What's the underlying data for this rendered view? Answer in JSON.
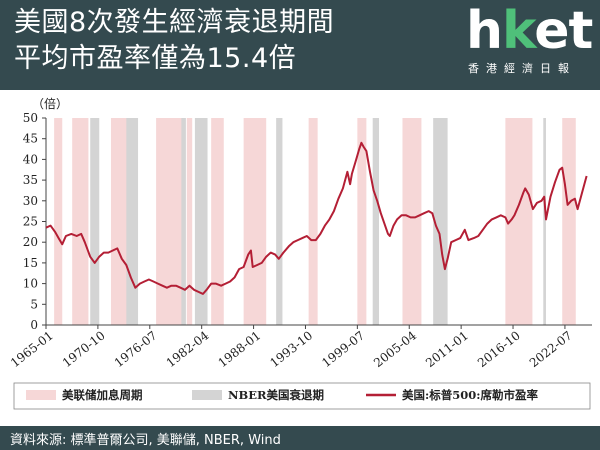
{
  "header": {
    "title_line1": "美國8次發生經濟衰退期間",
    "title_line2": "平均市盈率僅為15.4倍"
  },
  "logo": {
    "main_h": "h",
    "main_k": "k",
    "main_et": "et",
    "subtitle": "香港經濟日報"
  },
  "footer": {
    "source": "資料來源: 標準普爾公司, 美聯儲, NBER, Wind"
  },
  "colors": {
    "header_bg": "#344a4f",
    "line": "#b41f35",
    "fed_shade": "#f6d7d7",
    "nber_shade": "#d4d4d4"
  },
  "chart_data": {
    "type": "line",
    "y_unit": "（倍）",
    "ylim": [
      0,
      50
    ],
    "y_ticks": [
      0,
      5,
      10,
      15,
      20,
      25,
      30,
      35,
      40,
      45,
      50
    ],
    "xlim": [
      1965.0,
      2025.5
    ],
    "x_tick_labels": [
      "1965-01",
      "1970-10",
      "1976-07",
      "1982-04",
      "1988-01",
      "1993-10",
      "1999-07",
      "2005-04",
      "2011-01",
      "2016-10",
      "2022-07"
    ],
    "grid": false,
    "legend_placement": "bottom",
    "legend": [
      {
        "type": "fed_shade",
        "label": "美联储加息周期"
      },
      {
        "type": "nber_shade",
        "label": "NBER美国衰退期"
      },
      {
        "type": "line",
        "label": "美国:标普500:席勒市盈率"
      }
    ],
    "fed_hike_periods": [
      [
        1965.9,
        1966.8
      ],
      [
        1967.9,
        1969.7
      ],
      [
        1972.2,
        1974.5
      ],
      [
        1977.2,
        1980.2
      ],
      [
        1980.6,
        1981.2
      ],
      [
        1983.3,
        1984.7
      ],
      [
        1986.9,
        1989.4
      ],
      [
        1994.1,
        1995.1
      ],
      [
        1999.5,
        2000.5
      ],
      [
        2004.5,
        2006.6
      ],
      [
        2015.9,
        2018.9
      ],
      [
        2022.2,
        2023.7
      ]
    ],
    "nber_recessions": [
      [
        1969.9,
        1970.9
      ],
      [
        1973.9,
        1975.2
      ],
      [
        1980.0,
        1980.5
      ],
      [
        1981.5,
        1982.9
      ],
      [
        1990.5,
        1991.2
      ],
      [
        2001.2,
        2001.9
      ],
      [
        2007.9,
        2009.5
      ],
      [
        2020.1,
        2020.4
      ]
    ],
    "series": [
      {
        "name": "美国:标普500:席勒市盈率",
        "x": [
          1965.0,
          1965.5,
          1966.0,
          1966.4,
          1966.8,
          1967.2,
          1967.8,
          1968.4,
          1968.9,
          1969.3,
          1969.9,
          1970.4,
          1970.9,
          1971.4,
          1971.9,
          1972.4,
          1972.9,
          1973.4,
          1973.9,
          1974.4,
          1974.9,
          1975.4,
          1975.9,
          1976.4,
          1976.9,
          1977.4,
          1977.9,
          1978.4,
          1978.9,
          1979.4,
          1979.9,
          1980.4,
          1980.9,
          1981.4,
          1981.9,
          1982.4,
          1982.8,
          1983.3,
          1983.8,
          1984.4,
          1984.9,
          1985.4,
          1985.9,
          1986.4,
          1986.9,
          1987.4,
          1987.7,
          1987.9,
          1988.4,
          1988.9,
          1989.4,
          1989.9,
          1990.4,
          1990.8,
          1991.3,
          1991.9,
          1992.4,
          1992.9,
          1993.4,
          1993.9,
          1994.4,
          1994.9,
          1995.4,
          1995.9,
          1996.4,
          1996.9,
          1997.4,
          1997.9,
          1998.4,
          1998.7,
          1998.9,
          1999.3,
          1999.7,
          1999.95,
          2000.2,
          2000.5,
          2000.9,
          2001.3,
          2001.7,
          2002.1,
          2002.5,
          2002.9,
          2003.1,
          2003.5,
          2003.9,
          2004.4,
          2004.9,
          2005.4,
          2005.9,
          2006.4,
          2006.9,
          2007.4,
          2007.8,
          2008.2,
          2008.6,
          2008.9,
          2009.2,
          2009.5,
          2009.9,
          2010.4,
          2010.9,
          2011.4,
          2011.8,
          2012.4,
          2012.9,
          2013.4,
          2013.9,
          2014.4,
          2014.9,
          2015.4,
          2015.9,
          2016.2,
          2016.6,
          2016.9,
          2017.4,
          2017.9,
          2018.1,
          2018.5,
          2018.95,
          2019.4,
          2019.9,
          2020.2,
          2020.4,
          2020.9,
          2021.4,
          2021.9,
          2022.2,
          2022.5,
          2022.8,
          2023.2,
          2023.6,
          2023.9,
          2024.4,
          2024.9
        ],
        "values": [
          23.5,
          24.0,
          22.5,
          21.0,
          19.5,
          21.5,
          22.0,
          21.5,
          22.0,
          20.0,
          16.5,
          15.0,
          16.5,
          17.5,
          17.5,
          18.0,
          18.5,
          16.0,
          14.5,
          11.5,
          9.0,
          10.0,
          10.5,
          11.0,
          10.5,
          10.0,
          9.5,
          9.0,
          9.5,
          9.5,
          9.0,
          8.5,
          9.5,
          8.5,
          8.0,
          7.5,
          8.5,
          10.0,
          10.0,
          9.5,
          10.0,
          10.5,
          11.5,
          13.5,
          14.0,
          17.0,
          18.0,
          14.0,
          14.5,
          15.0,
          16.5,
          17.5,
          17.0,
          16.0,
          17.5,
          19.0,
          20.0,
          20.5,
          21.0,
          21.5,
          20.5,
          20.5,
          22.0,
          24.0,
          25.5,
          27.5,
          30.5,
          33.0,
          37.0,
          34.0,
          36.5,
          39.5,
          42.5,
          44.0,
          43.0,
          42.0,
          37.0,
          32.5,
          30.0,
          27.0,
          24.5,
          22.0,
          21.5,
          24.0,
          25.5,
          26.5,
          26.5,
          26.0,
          26.0,
          26.5,
          27.0,
          27.5,
          27.0,
          24.0,
          22.0,
          17.0,
          13.5,
          16.0,
          20.0,
          20.5,
          21.0,
          23.0,
          20.5,
          21.0,
          21.5,
          23.0,
          24.5,
          25.5,
          26.0,
          26.5,
          26.0,
          24.5,
          25.5,
          26.5,
          29.0,
          32.0,
          33.0,
          31.5,
          28.0,
          29.5,
          30.0,
          31.0,
          25.5,
          31.0,
          34.5,
          37.5,
          38.0,
          34.0,
          29.0,
          30.0,
          30.5,
          28.0,
          32.0,
          36.0
        ]
      }
    ]
  }
}
